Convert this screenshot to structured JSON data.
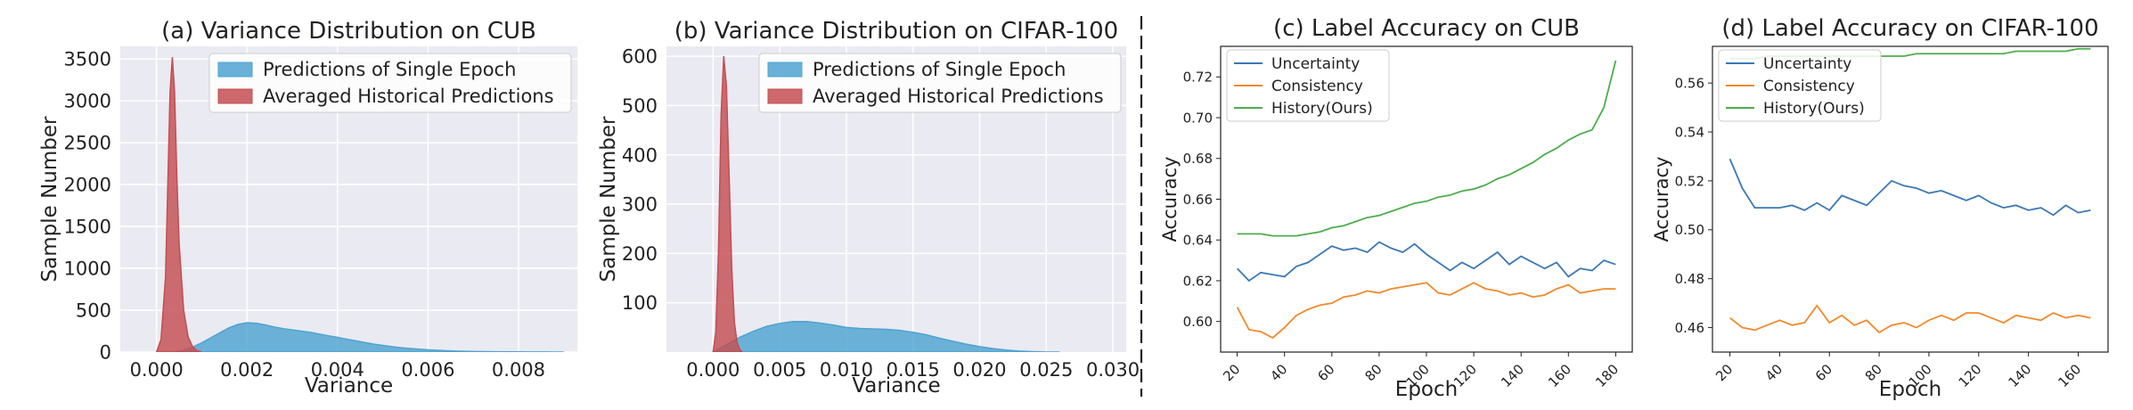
{
  "figure": {
    "separator_color": "#222222"
  },
  "chart_data": [
    {
      "type": "area",
      "title": "(a) Variance Distribution on CUB",
      "xlabel": "Variance",
      "ylabel": "Sample Number",
      "xlim": [
        -0.0008,
        0.0093
      ],
      "ylim": [
        0,
        3650
      ],
      "xticks": [
        0.0,
        0.002,
        0.004,
        0.006,
        0.008
      ],
      "xtick_labels": [
        "0.000",
        "0.002",
        "0.004",
        "0.006",
        "0.008"
      ],
      "yticks": [
        0,
        500,
        1000,
        1500,
        2000,
        2500,
        3000,
        3500
      ],
      "ytick_labels": [
        "0",
        "500",
        "1000",
        "1500",
        "2000",
        "2500",
        "3000",
        "3500"
      ],
      "grid": true,
      "background": "#eaeaf2",
      "legend_position": "top-right",
      "series": [
        {
          "name": "Predictions of Single Epoch",
          "color": "#4fa3d1",
          "x": [
            0.0004,
            0.0006,
            0.0008,
            0.001,
            0.0012,
            0.0014,
            0.0016,
            0.0018,
            0.002,
            0.0022,
            0.0024,
            0.0026,
            0.0028,
            0.003,
            0.0032,
            0.0034,
            0.0036,
            0.0038,
            0.004,
            0.0042,
            0.0044,
            0.0046,
            0.0048,
            0.005,
            0.0052,
            0.0054,
            0.0056,
            0.0058,
            0.006,
            0.0062,
            0.0064,
            0.0066,
            0.0068,
            0.007,
            0.0072,
            0.0074,
            0.0076,
            0.0078,
            0.008,
            0.0082,
            0.0084,
            0.0086,
            0.0088,
            0.009
          ],
          "y": [
            0,
            20,
            60,
            110,
            170,
            230,
            290,
            330,
            350,
            345,
            325,
            300,
            280,
            265,
            250,
            235,
            215,
            195,
            175,
            155,
            135,
            115,
            95,
            80,
            65,
            52,
            42,
            34,
            27,
            21,
            16,
            12,
            9,
            7,
            5,
            4,
            3,
            2,
            2,
            1,
            1,
            1,
            0,
            0
          ]
        },
        {
          "name": "Averaged Historical Predictions",
          "color": "#c44e52",
          "x": [
            0.0,
            0.0001,
            0.0002,
            0.00025,
            0.0003,
            0.00035,
            0.0004,
            0.00045,
            0.0005,
            0.0006,
            0.0007,
            0.0008,
            0.0009,
            0.001
          ],
          "y": [
            0,
            150,
            900,
            2000,
            3100,
            3520,
            3100,
            2100,
            1300,
            500,
            180,
            60,
            15,
            0
          ]
        }
      ]
    },
    {
      "type": "area",
      "title": "(b) Variance Distribution on CIFAR-100",
      "xlabel": "Variance",
      "ylabel": "Sample Number",
      "xlim": [
        -0.0035,
        0.031
      ],
      "ylim": [
        0,
        620
      ],
      "xticks": [
        0.0,
        0.005,
        0.01,
        0.015,
        0.02,
        0.025,
        0.03
      ],
      "xtick_labels": [
        "0.000",
        "0.005",
        "0.010",
        "0.015",
        "0.020",
        "0.025",
        "0.030"
      ],
      "yticks": [
        100,
        200,
        300,
        400,
        500,
        600
      ],
      "ytick_labels": [
        "100",
        "200",
        "300",
        "400",
        "500",
        "600"
      ],
      "grid": true,
      "background": "#eaeaf2",
      "legend_position": "top-right",
      "series": [
        {
          "name": "Predictions of Single Epoch",
          "color": "#4fa3d1",
          "x": [
            0.0,
            0.001,
            0.002,
            0.003,
            0.004,
            0.005,
            0.006,
            0.007,
            0.008,
            0.009,
            0.01,
            0.011,
            0.012,
            0.013,
            0.014,
            0.015,
            0.016,
            0.017,
            0.018,
            0.019,
            0.02,
            0.021,
            0.022,
            0.023,
            0.024,
            0.025,
            0.026
          ],
          "y": [
            0,
            15,
            30,
            42,
            52,
            58,
            62,
            62,
            59,
            55,
            50,
            48,
            47,
            46,
            44,
            40,
            35,
            28,
            22,
            16,
            11,
            7,
            4,
            2,
            1,
            0,
            0
          ]
        },
        {
          "name": "Averaged Historical Predictions",
          "color": "#c44e52",
          "x": [
            0.0,
            0.0002,
            0.0004,
            0.0006,
            0.0008,
            0.001,
            0.0012,
            0.0014,
            0.0016,
            0.0018,
            0.002,
            0.0022
          ],
          "y": [
            0,
            40,
            200,
            480,
            600,
            540,
            360,
            170,
            60,
            20,
            5,
            0
          ]
        }
      ]
    },
    {
      "type": "line",
      "title": "(c) Label Accuracy on CUB",
      "xlabel": "Epoch",
      "ylabel": "Accuracy",
      "xlim": [
        13,
        187
      ],
      "ylim": [
        0.585,
        0.735
      ],
      "xticks": [
        20,
        40,
        60,
        80,
        100,
        120,
        140,
        160,
        180
      ],
      "xtick_labels": [
        "20",
        "40",
        "60",
        "80",
        "100",
        "120",
        "140",
        "160",
        "180"
      ],
      "yticks": [
        0.6,
        0.62,
        0.64,
        0.66,
        0.68,
        0.7,
        0.72
      ],
      "ytick_labels": [
        "0.60",
        "0.62",
        "0.64",
        "0.66",
        "0.68",
        "0.70",
        "0.72"
      ],
      "grid": false,
      "legend_position": "top-left",
      "x": [
        20,
        25,
        30,
        35,
        40,
        45,
        50,
        55,
        60,
        65,
        70,
        75,
        80,
        85,
        90,
        95,
        100,
        105,
        110,
        115,
        120,
        125,
        130,
        135,
        140,
        145,
        150,
        155,
        160,
        165,
        170,
        175,
        180
      ],
      "series": [
        {
          "name": "Uncertainty",
          "color": "#3c78b6",
          "values": [
            0.626,
            0.62,
            0.624,
            0.623,
            0.622,
            0.627,
            0.629,
            0.633,
            0.637,
            0.635,
            0.636,
            0.634,
            0.639,
            0.636,
            0.634,
            0.638,
            0.633,
            0.629,
            0.625,
            0.629,
            0.626,
            0.63,
            0.634,
            0.628,
            0.632,
            0.629,
            0.626,
            0.629,
            0.622,
            0.626,
            0.625,
            0.63,
            0.628
          ]
        },
        {
          "name": "Consistency",
          "color": "#f08a2c",
          "values": [
            0.607,
            0.596,
            0.595,
            0.592,
            0.597,
            0.603,
            0.606,
            0.608,
            0.609,
            0.612,
            0.613,
            0.615,
            0.614,
            0.616,
            0.617,
            0.618,
            0.619,
            0.614,
            0.613,
            0.616,
            0.619,
            0.616,
            0.615,
            0.613,
            0.614,
            0.612,
            0.613,
            0.616,
            0.618,
            0.614,
            0.615,
            0.616,
            0.616
          ]
        },
        {
          "name": "History(Ours)",
          "color": "#4cad4c",
          "values": [
            0.643,
            0.643,
            0.643,
            0.642,
            0.642,
            0.642,
            0.643,
            0.644,
            0.646,
            0.647,
            0.649,
            0.651,
            0.652,
            0.654,
            0.656,
            0.658,
            0.659,
            0.661,
            0.662,
            0.664,
            0.665,
            0.667,
            0.67,
            0.672,
            0.675,
            0.678,
            0.682,
            0.685,
            0.689,
            0.692,
            0.694,
            0.705,
            0.728
          ]
        }
      ]
    },
    {
      "type": "line",
      "title": "(d) Label Accuracy on CIFAR-100",
      "xlabel": "Epoch",
      "ylabel": "Accuracy",
      "xlim": [
        13,
        172
      ],
      "ylim": [
        0.45,
        0.575
      ],
      "xticks": [
        20,
        40,
        60,
        80,
        100,
        120,
        140,
        160
      ],
      "xtick_labels": [
        "20",
        "40",
        "60",
        "80",
        "100",
        "120",
        "140",
        "160"
      ],
      "yticks": [
        0.46,
        0.48,
        0.5,
        0.52,
        0.54,
        0.56
      ],
      "ytick_labels": [
        "0.46",
        "0.48",
        "0.50",
        "0.52",
        "0.54",
        "0.56"
      ],
      "grid": false,
      "legend_position": "top-left",
      "x": [
        20,
        25,
        30,
        35,
        40,
        45,
        50,
        55,
        60,
        65,
        70,
        75,
        80,
        85,
        90,
        95,
        100,
        105,
        110,
        115,
        120,
        125,
        130,
        135,
        140,
        145,
        150,
        155,
        160,
        165
      ],
      "series": [
        {
          "name": "Uncertainty",
          "color": "#3c78b6",
          "values": [
            0.529,
            0.517,
            0.509,
            0.509,
            0.509,
            0.51,
            0.508,
            0.511,
            0.508,
            0.514,
            0.512,
            0.51,
            0.515,
            0.52,
            0.518,
            0.517,
            0.515,
            0.516,
            0.514,
            0.512,
            0.514,
            0.511,
            0.509,
            0.51,
            0.508,
            0.509,
            0.506,
            0.51,
            0.507,
            0.508
          ]
        },
        {
          "name": "Consistency",
          "color": "#f08a2c",
          "values": [
            0.464,
            0.46,
            0.459,
            0.461,
            0.463,
            0.461,
            0.462,
            0.469,
            0.462,
            0.465,
            0.461,
            0.463,
            0.458,
            0.461,
            0.462,
            0.46,
            0.463,
            0.465,
            0.463,
            0.466,
            0.466,
            0.464,
            0.462,
            0.465,
            0.464,
            0.463,
            0.466,
            0.464,
            0.465,
            0.464
          ]
        },
        {
          "name": "History(Ours)",
          "color": "#4cad4c",
          "values": [
            0.57,
            0.57,
            0.57,
            0.571,
            0.571,
            0.571,
            0.571,
            0.571,
            0.571,
            0.571,
            0.571,
            0.571,
            0.571,
            0.571,
            0.571,
            0.572,
            0.572,
            0.572,
            0.572,
            0.572,
            0.572,
            0.572,
            0.572,
            0.573,
            0.573,
            0.573,
            0.573,
            0.573,
            0.574,
            0.574
          ]
        }
      ]
    }
  ]
}
